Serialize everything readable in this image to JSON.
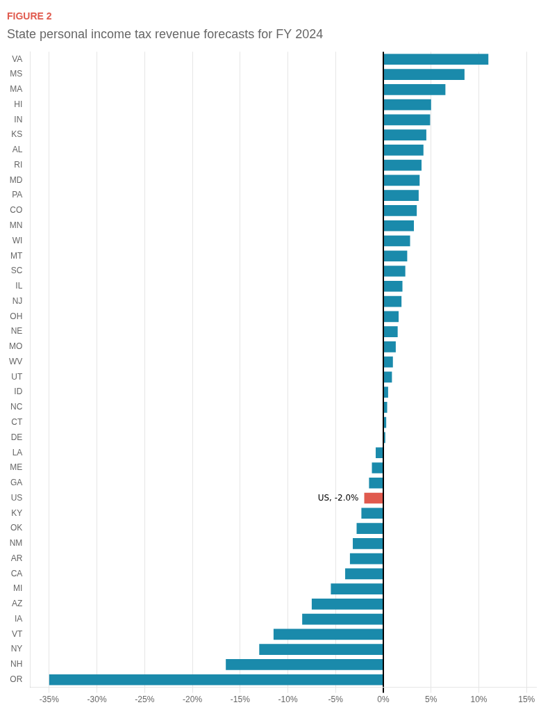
{
  "chart_data": {
    "type": "bar",
    "orientation": "horizontal",
    "title": "State personal income tax revenue forecasts for FY 2024",
    "subtitle": "FIGURE 2",
    "categories": [
      "VA",
      "MS",
      "MA",
      "HI",
      "IN",
      "KS",
      "AL",
      "RI",
      "MD",
      "PA",
      "CO",
      "MN",
      "WI",
      "MT",
      "SC",
      "IL",
      "NJ",
      "OH",
      "NE",
      "MO",
      "WV",
      "UT",
      "ID",
      "NC",
      "CT",
      "DE",
      "LA",
      "ME",
      "GA",
      "US",
      "KY",
      "OK",
      "NM",
      "AR",
      "CA",
      "MI",
      "AZ",
      "IA",
      "VT",
      "NY",
      "NH",
      "OR"
    ],
    "values": [
      11.0,
      8.5,
      6.5,
      5.0,
      4.9,
      4.5,
      4.2,
      4.0,
      3.8,
      3.7,
      3.5,
      3.2,
      2.8,
      2.5,
      2.3,
      2.0,
      1.9,
      1.6,
      1.5,
      1.3,
      1.0,
      0.9,
      0.5,
      0.4,
      0.3,
      0.2,
      -0.8,
      -1.2,
      -1.5,
      -2.0,
      -2.3,
      -2.8,
      -3.2,
      -3.5,
      -4.0,
      -5.5,
      -7.5,
      -8.5,
      -11.5,
      -13.0,
      -16.5,
      -35.0
    ],
    "colors": [
      "#1a8aab",
      "#1a8aab",
      "#1a8aab",
      "#1a8aab",
      "#1a8aab",
      "#1a8aab",
      "#1a8aab",
      "#1a8aab",
      "#1a8aab",
      "#1a8aab",
      "#1a8aab",
      "#1a8aab",
      "#1a8aab",
      "#1a8aab",
      "#1a8aab",
      "#1a8aab",
      "#1a8aab",
      "#1a8aab",
      "#1a8aab",
      "#1a8aab",
      "#1a8aab",
      "#1a8aab",
      "#1a8aab",
      "#1a8aab",
      "#1a8aab",
      "#1a8aab",
      "#1a8aab",
      "#1a8aab",
      "#1a8aab",
      "#e05a4e",
      "#1a8aab",
      "#1a8aab",
      "#1a8aab",
      "#1a8aab",
      "#1a8aab",
      "#1a8aab",
      "#1a8aab",
      "#1a8aab",
      "#1a8aab",
      "#1a8aab",
      "#1a8aab",
      "#1a8aab"
    ],
    "xlim": [
      -37,
      16
    ],
    "xticks": [
      {
        "value": -35,
        "label": "-35%"
      },
      {
        "value": -30,
        "label": "-30%"
      },
      {
        "value": -25,
        "label": "-25%"
      },
      {
        "value": -20,
        "label": "-20%"
      },
      {
        "value": -15,
        "label": "-15%"
      },
      {
        "value": -10,
        "label": "-10%"
      },
      {
        "value": -5,
        "label": "-5%"
      },
      {
        "value": 0,
        "label": "0%"
      },
      {
        "value": 5,
        "label": "5%"
      },
      {
        "value": 10,
        "label": "10%"
      },
      {
        "value": 15,
        "label": "15%"
      }
    ],
    "grid": true,
    "annotations": [
      {
        "text": "US, -2.0%",
        "category": "US"
      }
    ]
  }
}
